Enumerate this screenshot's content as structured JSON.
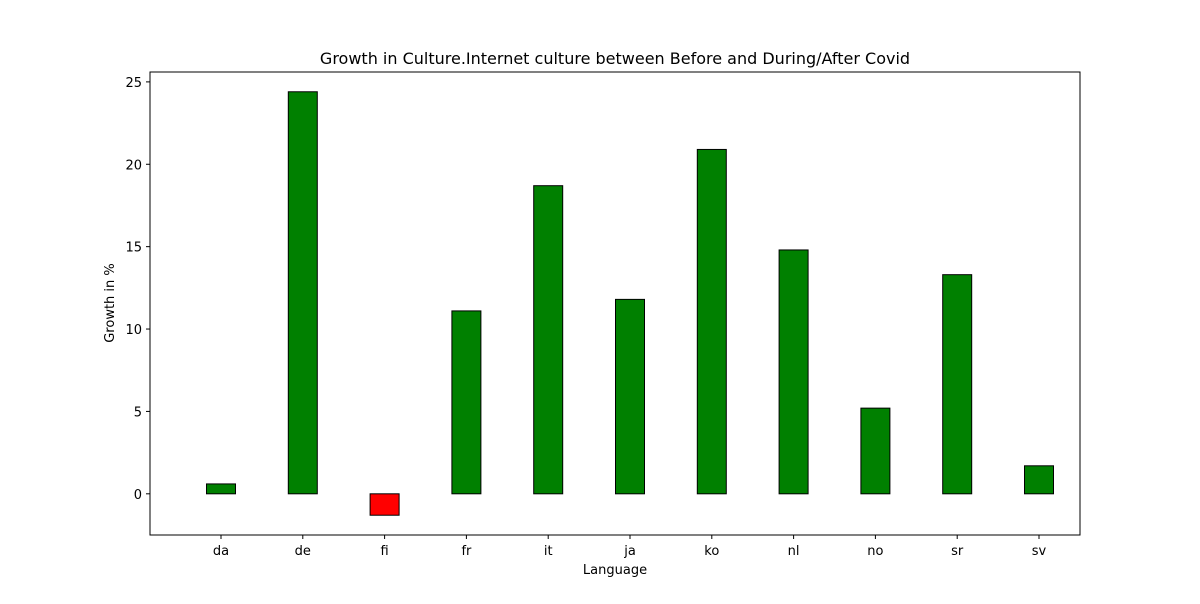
{
  "chart_data": {
    "type": "bar",
    "title": "Growth in Culture.Internet culture between Before and During/After Covid",
    "xlabel": "Language",
    "ylabel": "Growth in %",
    "categories": [
      "da",
      "de",
      "fi",
      "fr",
      "it",
      "ja",
      "ko",
      "nl",
      "no",
      "sr",
      "sv"
    ],
    "values": [
      0.6,
      24.4,
      -1.3,
      11.1,
      18.7,
      11.8,
      20.9,
      14.8,
      5.2,
      13.3,
      1.7
    ],
    "ylim": [
      -2.5,
      25.6
    ],
    "yticks": [
      0,
      5,
      10,
      15,
      20,
      25
    ],
    "grid": false,
    "colors": {
      "positive": "#008000",
      "negative": "#ff0000",
      "edge": "#000000"
    }
  }
}
